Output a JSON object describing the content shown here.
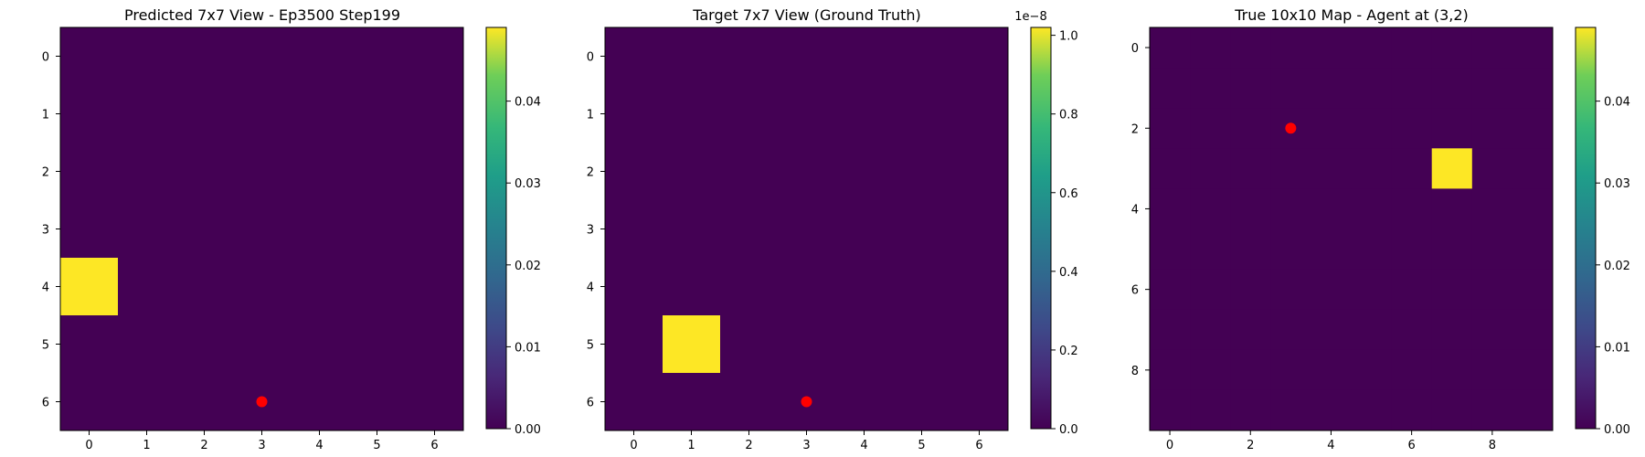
{
  "colors": {
    "low": "#440154",
    "high": "#fde725",
    "marker": "#ff0000",
    "axis": "#000000"
  },
  "chart_data": [
    {
      "type": "heatmap",
      "title": "Predicted 7x7 View - Ep3500 Step199",
      "rows": 7,
      "cols": 7,
      "x_ticks": [
        "0",
        "1",
        "2",
        "3",
        "4",
        "5",
        "6"
      ],
      "y_ticks": [
        "0",
        "1",
        "2",
        "3",
        "4",
        "5",
        "6"
      ],
      "bright_cells": [
        {
          "row": 4,
          "col": 0
        }
      ],
      "marker": {
        "x": 3,
        "y": 6
      },
      "colorbar": {
        "min": 0,
        "max": 0.049,
        "ticks": [
          "0.00",
          "0.01",
          "0.02",
          "0.03",
          "0.04"
        ],
        "tick_values": [
          0,
          0.01,
          0.02,
          0.03,
          0.04
        ],
        "offset_label": ""
      }
    },
    {
      "type": "heatmap",
      "title": "Target 7x7 View (Ground Truth)",
      "rows": 7,
      "cols": 7,
      "x_ticks": [
        "0",
        "1",
        "2",
        "3",
        "4",
        "5",
        "6"
      ],
      "y_ticks": [
        "0",
        "1",
        "2",
        "3",
        "4",
        "5",
        "6"
      ],
      "bright_cells": [
        {
          "row": 5,
          "col": 1
        }
      ],
      "marker": {
        "x": 3,
        "y": 6
      },
      "colorbar": {
        "min": 0,
        "max": 1.02,
        "ticks": [
          "0.0",
          "0.2",
          "0.4",
          "0.6",
          "0.8",
          "1.0"
        ],
        "tick_values": [
          0,
          0.2,
          0.4,
          0.6,
          0.8,
          1.0
        ],
        "offset_label": "1e−8"
      }
    },
    {
      "type": "heatmap",
      "title": "True 10x10 Map - Agent at (3,2)",
      "rows": 10,
      "cols": 10,
      "x_ticks": [
        "0",
        "2",
        "4",
        "6",
        "8"
      ],
      "x_tick_values": [
        0,
        2,
        4,
        6,
        8
      ],
      "y_ticks": [
        "0",
        "2",
        "4",
        "6",
        "8"
      ],
      "y_tick_values": [
        0,
        2,
        4,
        6,
        8
      ],
      "bright_cells": [
        {
          "row": 3,
          "col": 7
        }
      ],
      "marker": {
        "x": 3,
        "y": 2
      },
      "colorbar": {
        "min": 0,
        "max": 0.049,
        "ticks": [
          "0.00",
          "0.01",
          "0.02",
          "0.03",
          "0.04"
        ],
        "tick_values": [
          0,
          0.01,
          0.02,
          0.03,
          0.04
        ],
        "offset_label": ""
      }
    }
  ]
}
